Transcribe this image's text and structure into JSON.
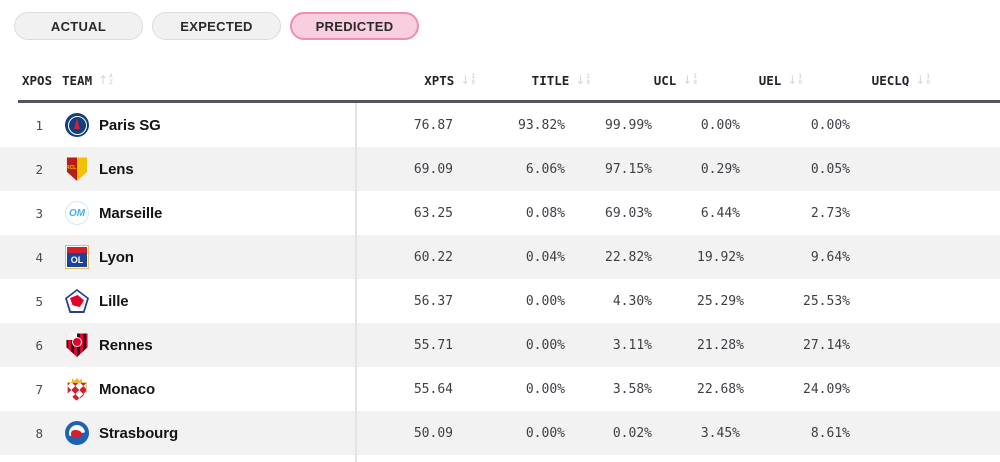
{
  "tabs": [
    {
      "label": "ACTUAL",
      "active": false
    },
    {
      "label": "EXPECTED",
      "active": false
    },
    {
      "label": "PREDICTED",
      "active": true
    }
  ],
  "colors": {
    "active_tab_bg": "#f9cede",
    "active_tab_border": "#ef8cb1",
    "inactive_tab_bg": "#f1f1f1",
    "header_rule": "#56525f",
    "row_stripe": "#f2f2f2",
    "column_divider": "#e4e4e4"
  },
  "table": {
    "columns": [
      {
        "key": "xpos",
        "label": "XPOS",
        "sort_icon": null
      },
      {
        "key": "team",
        "label": "TEAM",
        "sort_icon": "sort-ascending-letters"
      },
      {
        "key": "xpts",
        "label": "XPTS",
        "sort_icon": "sort-descending-numbers"
      },
      {
        "key": "title",
        "label": "TITLE",
        "sort_icon": "sort-descending-numbers"
      },
      {
        "key": "ucl",
        "label": "UCL",
        "sort_icon": "sort-descending-numbers"
      },
      {
        "key": "uel",
        "label": "UEL",
        "sort_icon": "sort-descending-numbers"
      },
      {
        "key": "ueclq",
        "label": "UECLQ",
        "sort_icon": "sort-descending-numbers"
      }
    ],
    "rows": [
      {
        "xpos": "1",
        "team": "Paris SG",
        "logo": "paris-sg",
        "xpts": "76.87",
        "title": "93.82%",
        "ucl": "99.99%",
        "uel": "0.00%",
        "ueclq": "0.00%"
      },
      {
        "xpos": "2",
        "team": "Lens",
        "logo": "lens",
        "xpts": "69.09",
        "title": "6.06%",
        "ucl": "97.15%",
        "uel": "0.29%",
        "ueclq": "0.05%"
      },
      {
        "xpos": "3",
        "team": "Marseille",
        "logo": "marseille",
        "xpts": "63.25",
        "title": "0.08%",
        "ucl": "69.03%",
        "uel": "6.44%",
        "ueclq": "2.73%"
      },
      {
        "xpos": "4",
        "team": "Lyon",
        "logo": "lyon",
        "xpts": "60.22",
        "title": "0.04%",
        "ucl": "22.82%",
        "uel": "19.92%",
        "ueclq": "9.64%"
      },
      {
        "xpos": "5",
        "team": "Lille",
        "logo": "lille",
        "xpts": "56.37",
        "title": "0.00%",
        "ucl": "4.30%",
        "uel": "25.29%",
        "ueclq": "25.53%"
      },
      {
        "xpos": "6",
        "team": "Rennes",
        "logo": "rennes",
        "xpts": "55.71",
        "title": "0.00%",
        "ucl": "3.11%",
        "uel": "21.28%",
        "ueclq": "27.14%"
      },
      {
        "xpos": "7",
        "team": "Monaco",
        "logo": "monaco",
        "xpts": "55.64",
        "title": "0.00%",
        "ucl": "3.58%",
        "uel": "22.68%",
        "ueclq": "24.09%"
      },
      {
        "xpos": "8",
        "team": "Strasbourg",
        "logo": "strasbourg",
        "xpts": "50.09",
        "title": "0.00%",
        "ucl": "0.02%",
        "uel": "3.45%",
        "ueclq": "8.61%"
      }
    ]
  }
}
